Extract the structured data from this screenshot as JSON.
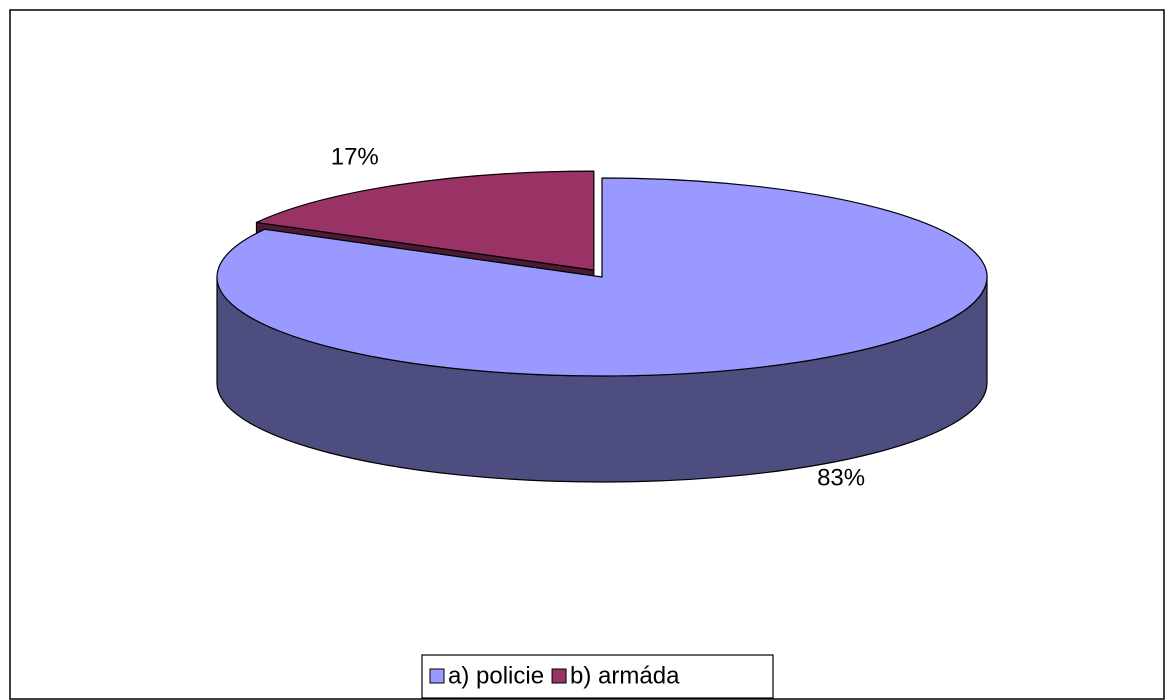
{
  "chart_data": {
    "type": "pie3d",
    "categories": [
      "a) policie",
      "b) armáda"
    ],
    "values": [
      83,
      17
    ],
    "value_labels": [
      "83%",
      "17%"
    ],
    "colors": [
      "#9999ff",
      "#993366"
    ],
    "exploded": [
      false,
      true
    ],
    "legend": "bottom"
  }
}
